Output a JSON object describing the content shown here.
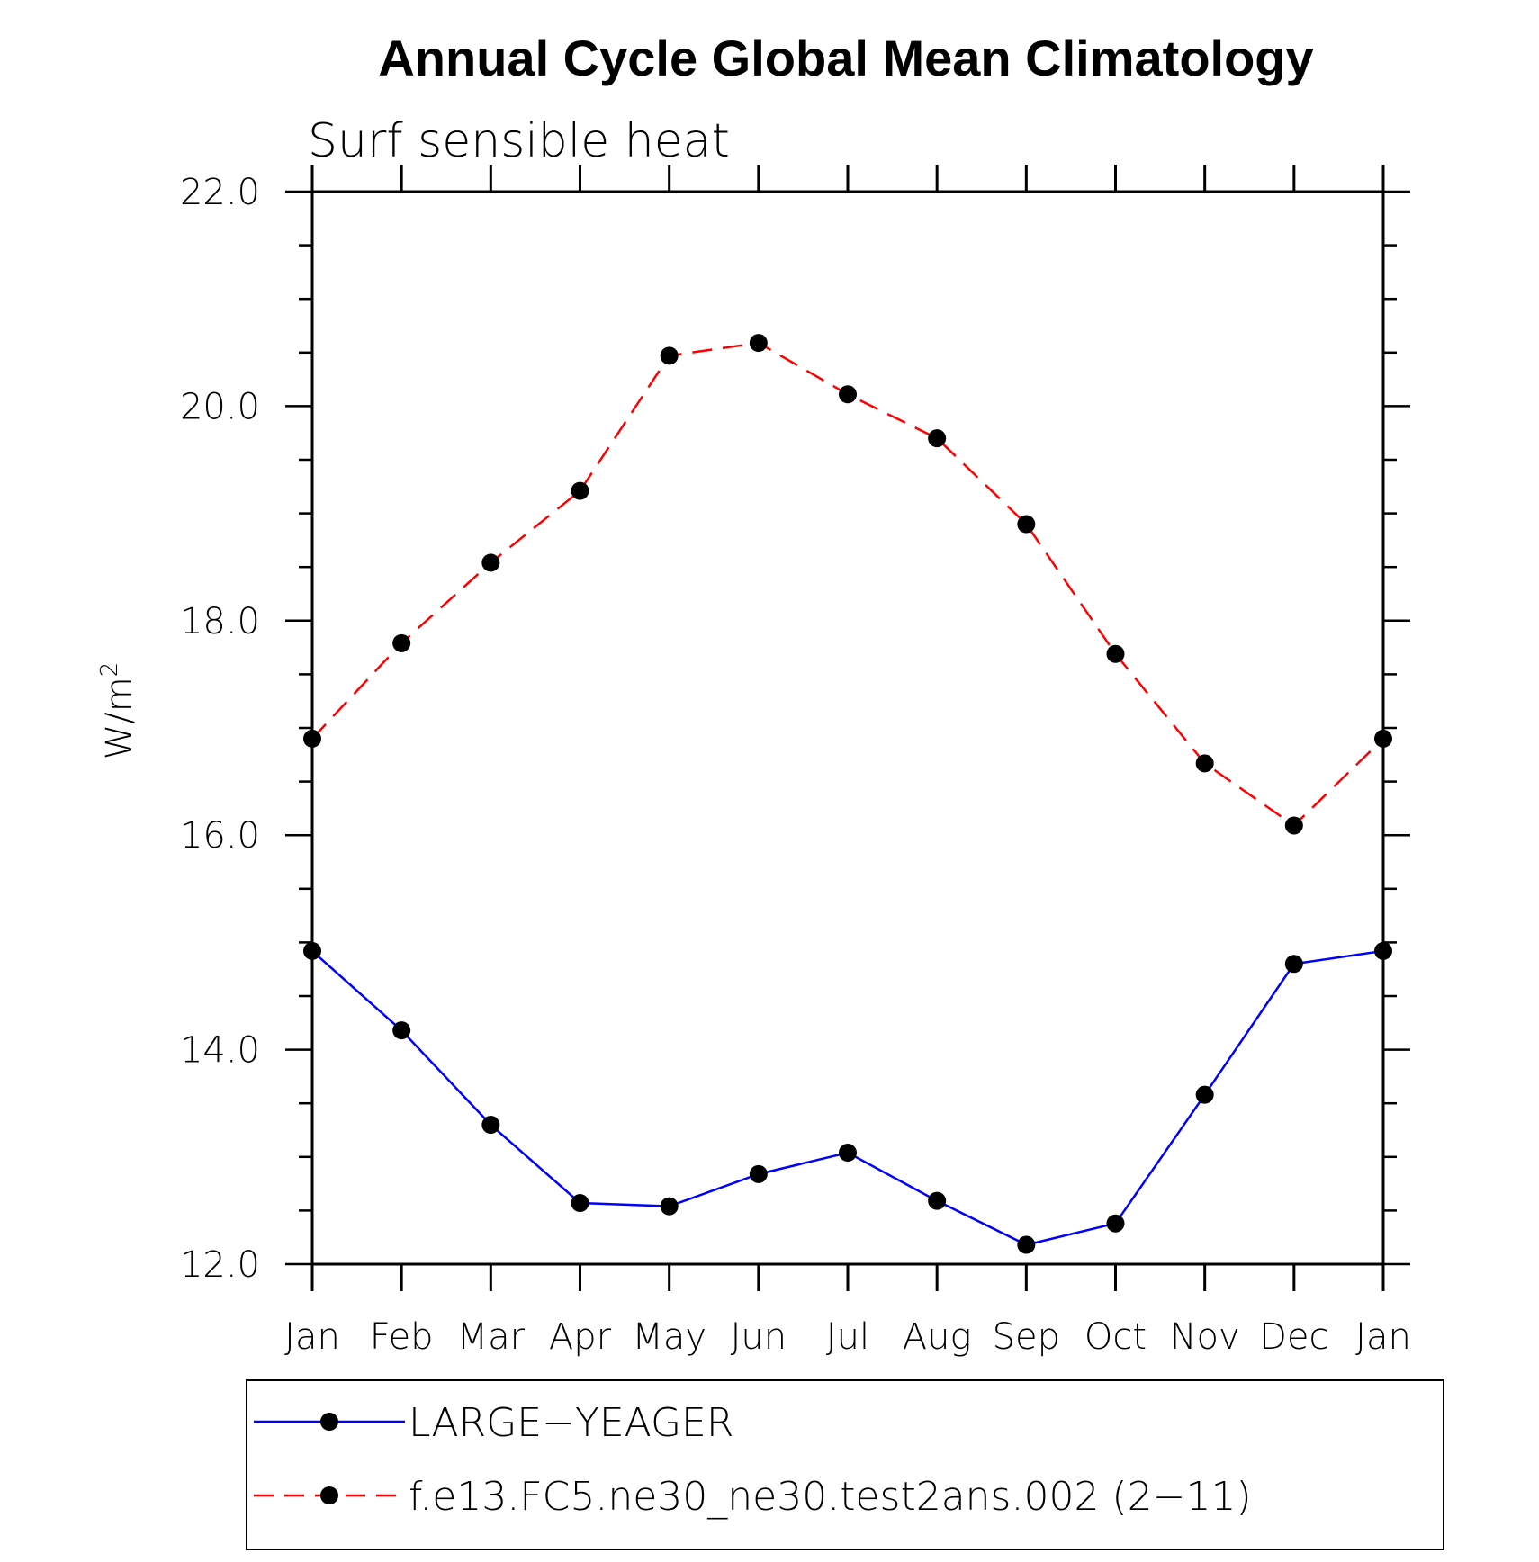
{
  "chart_data": {
    "type": "line",
    "title": "Annual Cycle Global Mean Climatology",
    "subtitle": "Surf sensible heat",
    "ylabel": "W/m",
    "ylabel_superscript": "2",
    "xlabel": "",
    "categories": [
      "Jan",
      "Feb",
      "Mar",
      "Apr",
      "May",
      "Jun",
      "Jul",
      "Aug",
      "Sep",
      "Oct",
      "Nov",
      "Dec",
      "Jan"
    ],
    "ylim": [
      12.0,
      22.0
    ],
    "yticks": [
      "12.0",
      "14.0",
      "16.0",
      "18.0",
      "20.0",
      "22.0"
    ],
    "grid": false,
    "legend_position": "bottom",
    "series": [
      {
        "name": "LARGE−YEAGER",
        "color": "#0000ff",
        "dash": "solid",
        "marker": "filled-circle",
        "values": [
          14.92,
          14.18,
          13.3,
          12.57,
          12.54,
          12.84,
          13.04,
          12.59,
          12.18,
          12.38,
          13.58,
          14.8,
          14.92
        ]
      },
      {
        "name": "f.e13.FC5.ne30_ne30.test2ans.002 (2−11)",
        "color": "#ff0000",
        "dash": "dashed",
        "marker": "filled-circle",
        "values": [
          16.9,
          17.79,
          18.54,
          19.21,
          20.47,
          20.59,
          20.11,
          19.7,
          18.9,
          17.69,
          16.67,
          16.09,
          16.9
        ]
      }
    ]
  }
}
